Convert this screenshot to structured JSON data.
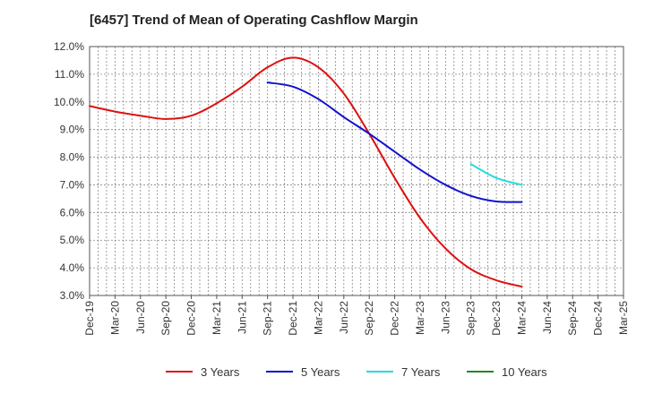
{
  "chart_data": {
    "type": "line",
    "title": "[6457]  Trend of Mean of Operating Cashflow Margin",
    "xlabel": "",
    "ylabel": "",
    "ylim": [
      3.0,
      12.0
    ],
    "grid": true,
    "legend_position": "bottom",
    "y_ticks": [
      "12.0%",
      "11.0%",
      "10.0%",
      "9.0%",
      "8.0%",
      "7.0%",
      "6.0%",
      "5.0%",
      "4.0%",
      "3.0%"
    ],
    "categories": [
      "Dec-19",
      "Mar-20",
      "Jun-20",
      "Sep-20",
      "Dec-20",
      "Mar-21",
      "Jun-21",
      "Sep-21",
      "Dec-21",
      "Mar-22",
      "Jun-22",
      "Sep-22",
      "Dec-22",
      "Mar-23",
      "Jun-23",
      "Sep-23",
      "Dec-23",
      "Mar-24",
      "Jun-24",
      "Sep-24",
      "Dec-24",
      "Mar-25"
    ],
    "series": [
      {
        "name": "3 Years",
        "color": "#dd1111",
        "values": [
          9.85,
          9.65,
          9.5,
          9.38,
          9.5,
          9.95,
          10.55,
          11.25,
          11.6,
          11.25,
          10.3,
          8.85,
          7.25,
          5.8,
          4.7,
          3.95,
          3.55,
          3.32,
          null,
          null,
          null,
          null
        ]
      },
      {
        "name": "5 Years",
        "color": "#1111cc",
        "values": [
          null,
          null,
          null,
          null,
          null,
          null,
          null,
          10.7,
          10.55,
          10.1,
          9.45,
          8.85,
          8.2,
          7.55,
          7.0,
          6.6,
          6.4,
          6.38,
          null,
          null,
          null,
          null
        ]
      },
      {
        "name": "7 Years",
        "color": "#22dddd",
        "values": [
          null,
          null,
          null,
          null,
          null,
          null,
          null,
          null,
          null,
          null,
          null,
          null,
          null,
          null,
          null,
          7.75,
          7.25,
          7.0,
          null,
          null,
          null,
          null
        ]
      },
      {
        "name": "10 Years",
        "color": "#228822",
        "values": [
          null,
          null,
          null,
          null,
          null,
          null,
          null,
          null,
          null,
          null,
          null,
          null,
          null,
          null,
          null,
          null,
          null,
          null,
          null,
          null,
          null,
          null
        ]
      }
    ]
  }
}
